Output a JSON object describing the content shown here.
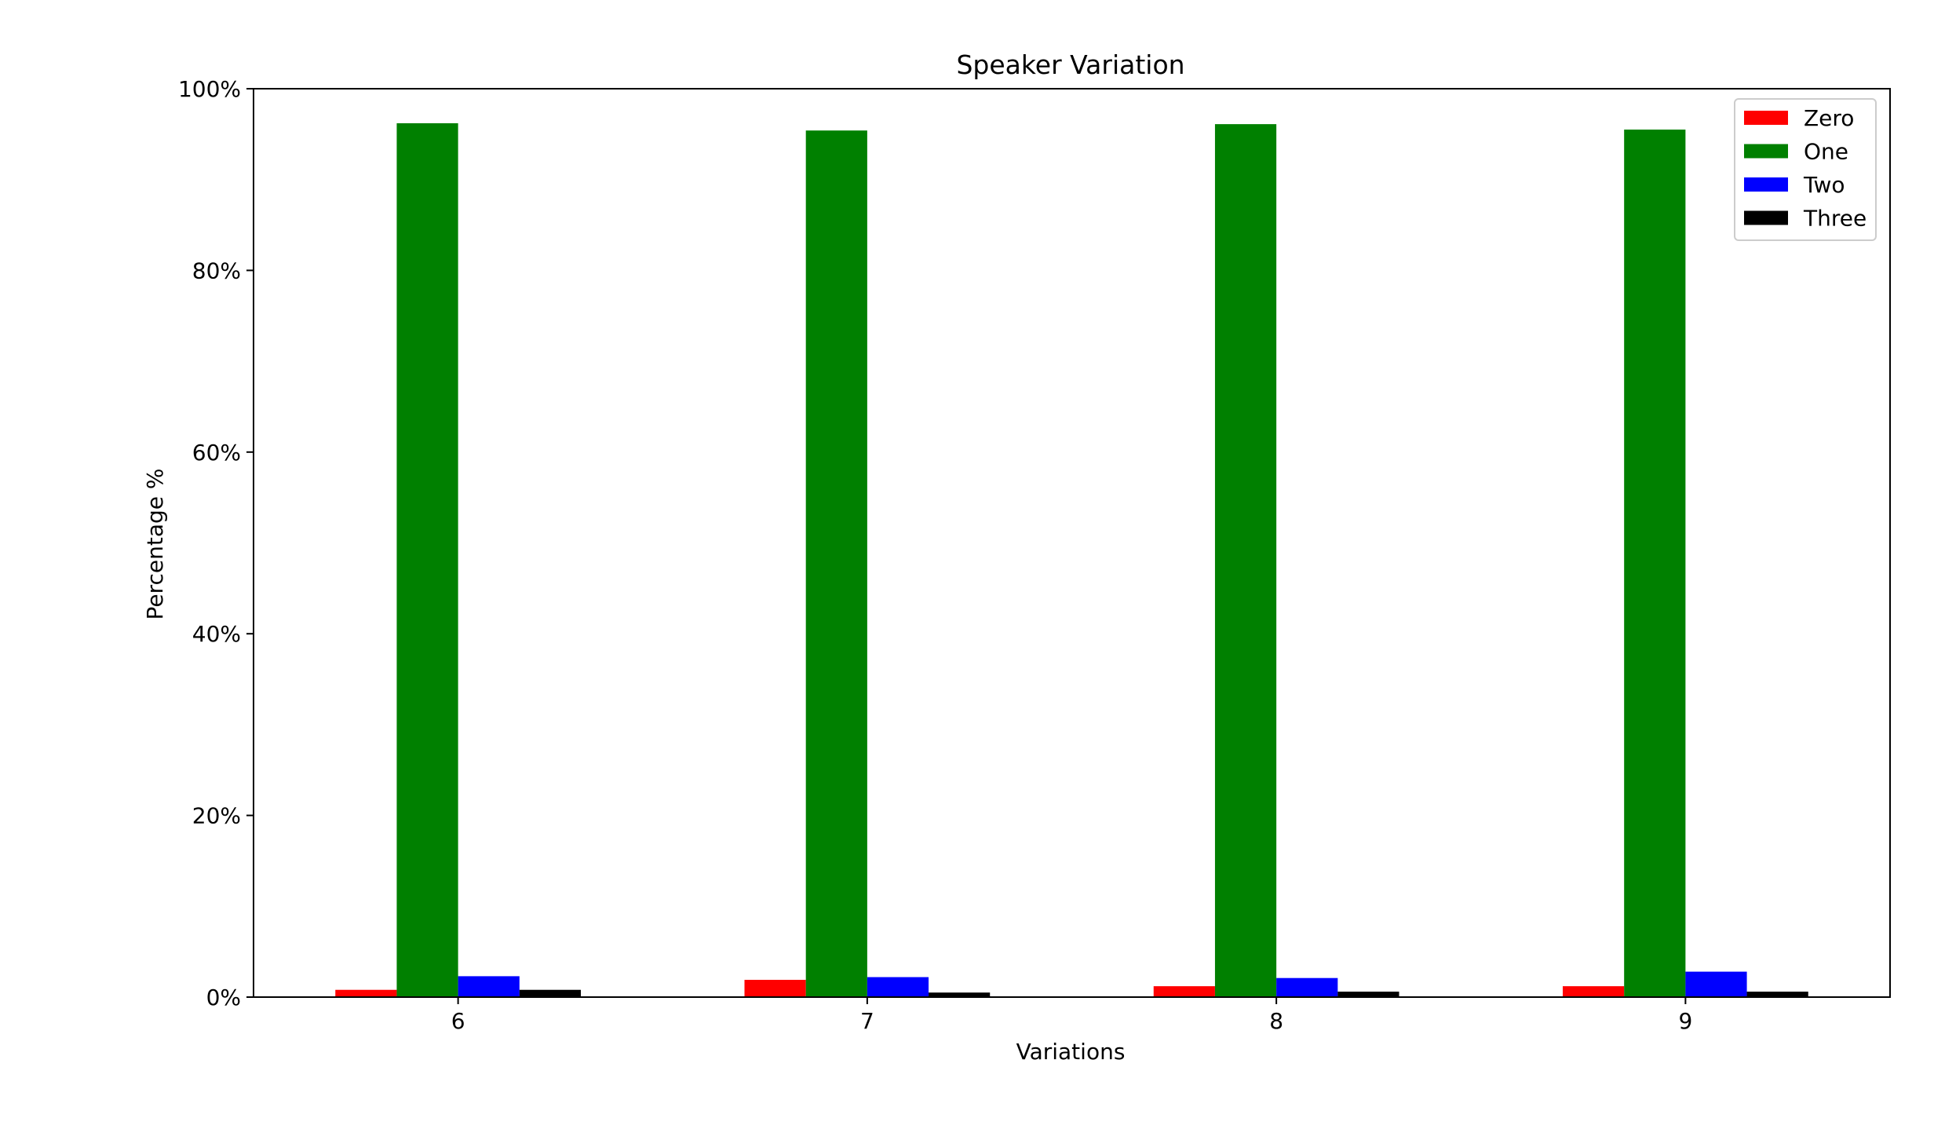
{
  "chart_data": {
    "type": "bar",
    "title": "Speaker Variation",
    "xlabel": "Variations",
    "ylabel": "Percentage %",
    "categories": [
      "6",
      "7",
      "8",
      "9"
    ],
    "ylim": [
      0,
      100
    ],
    "yticks": [
      0,
      20,
      40,
      60,
      80,
      100
    ],
    "ytick_labels": [
      "0%",
      "20%",
      "40%",
      "60%",
      "80%",
      "100%"
    ],
    "grid": false,
    "legend_position": "top-right",
    "series": [
      {
        "name": "Zero",
        "color": "#ff0000",
        "values": [
          0.8,
          1.9,
          1.2,
          1.2
        ]
      },
      {
        "name": "One",
        "color": "#008000",
        "values": [
          96.2,
          95.4,
          96.1,
          95.5
        ]
      },
      {
        "name": "Two",
        "color": "#0000ff",
        "values": [
          2.3,
          2.2,
          2.1,
          2.8
        ]
      },
      {
        "name": "Three",
        "color": "#000000",
        "values": [
          0.8,
          0.5,
          0.6,
          0.6
        ]
      }
    ]
  }
}
